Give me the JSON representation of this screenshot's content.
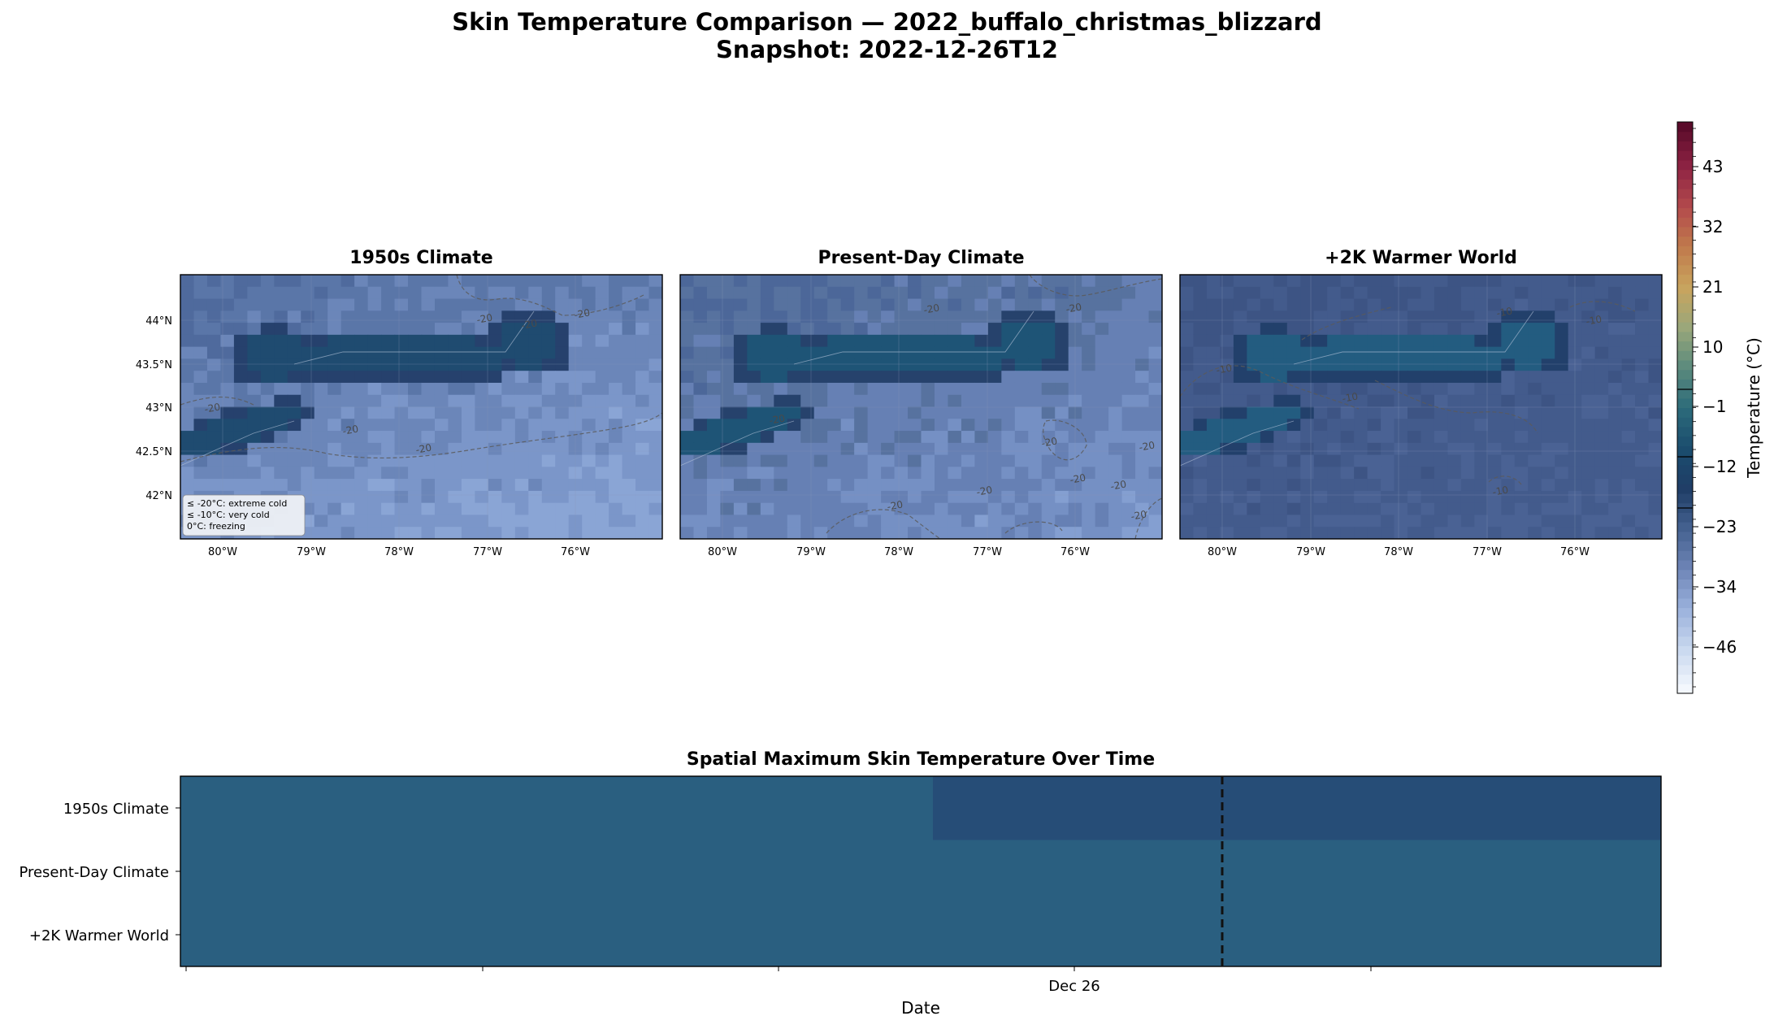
{
  "figure": {
    "title_line1": "Skin Temperature Comparison — 2022_buffalo_christmas_blizzard",
    "title_line2": "Snapshot: 2022-12-26T12"
  },
  "maps": [
    {
      "title": "1950s Climate",
      "contour_labels": [
        "-20",
        "-20",
        "-20",
        "-20",
        "-20",
        "-20"
      ]
    },
    {
      "title": "Present-Day Climate",
      "contour_labels": [
        "-20",
        "-20",
        "-20",
        "-20",
        "-20",
        "-20",
        "-20",
        "-20",
        "-20",
        "-20"
      ]
    },
    {
      "title": "+2K Warmer World",
      "contour_labels": [
        "-10",
        "-10",
        "-10",
        "-10",
        "-10"
      ]
    }
  ],
  "map_axes": {
    "lon_ticks": [
      "80°W",
      "79°W",
      "78°W",
      "77°W",
      "76°W"
    ],
    "lat_ticks": [
      "44°N",
      "43.5°N",
      "43°N",
      "42.5°N",
      "42°N"
    ]
  },
  "map_legend": [
    "≤ -20°C: extreme cold",
    "≤ -10°C: very cold",
    "0°C: freezing"
  ],
  "colorbar": {
    "label": "Temperature (°C)",
    "ticks": [
      "43",
      "32",
      "21",
      "10",
      "−1",
      "−12",
      "−23",
      "−34",
      "−46"
    ],
    "colors": [
      "#f3f7fd",
      "#c9d8ef",
      "#9ab1dc",
      "#6d84b6",
      "#44618f",
      "#1f3d66",
      "#1b4d6e",
      "#2c6b7a",
      "#5b8a7d",
      "#9aa77a",
      "#c9a45e",
      "#c07b4c",
      "#b34a4c",
      "#8e2343",
      "#5a0b2a"
    ]
  },
  "chart_data": {
    "type": "heatmap",
    "title": "Spatial Maximum Skin Temperature Over Time",
    "xlabel": "Date",
    "x_tick_labels": [
      "Dec 26"
    ],
    "rows": [
      "1950s Climate",
      "Present-Day Climate",
      "+2K Warmer World"
    ],
    "snapshot_marker": "2022-12-26T12",
    "colors": {
      "warmer_max": "#2a5f80",
      "colder_max": "#264d77"
    }
  }
}
